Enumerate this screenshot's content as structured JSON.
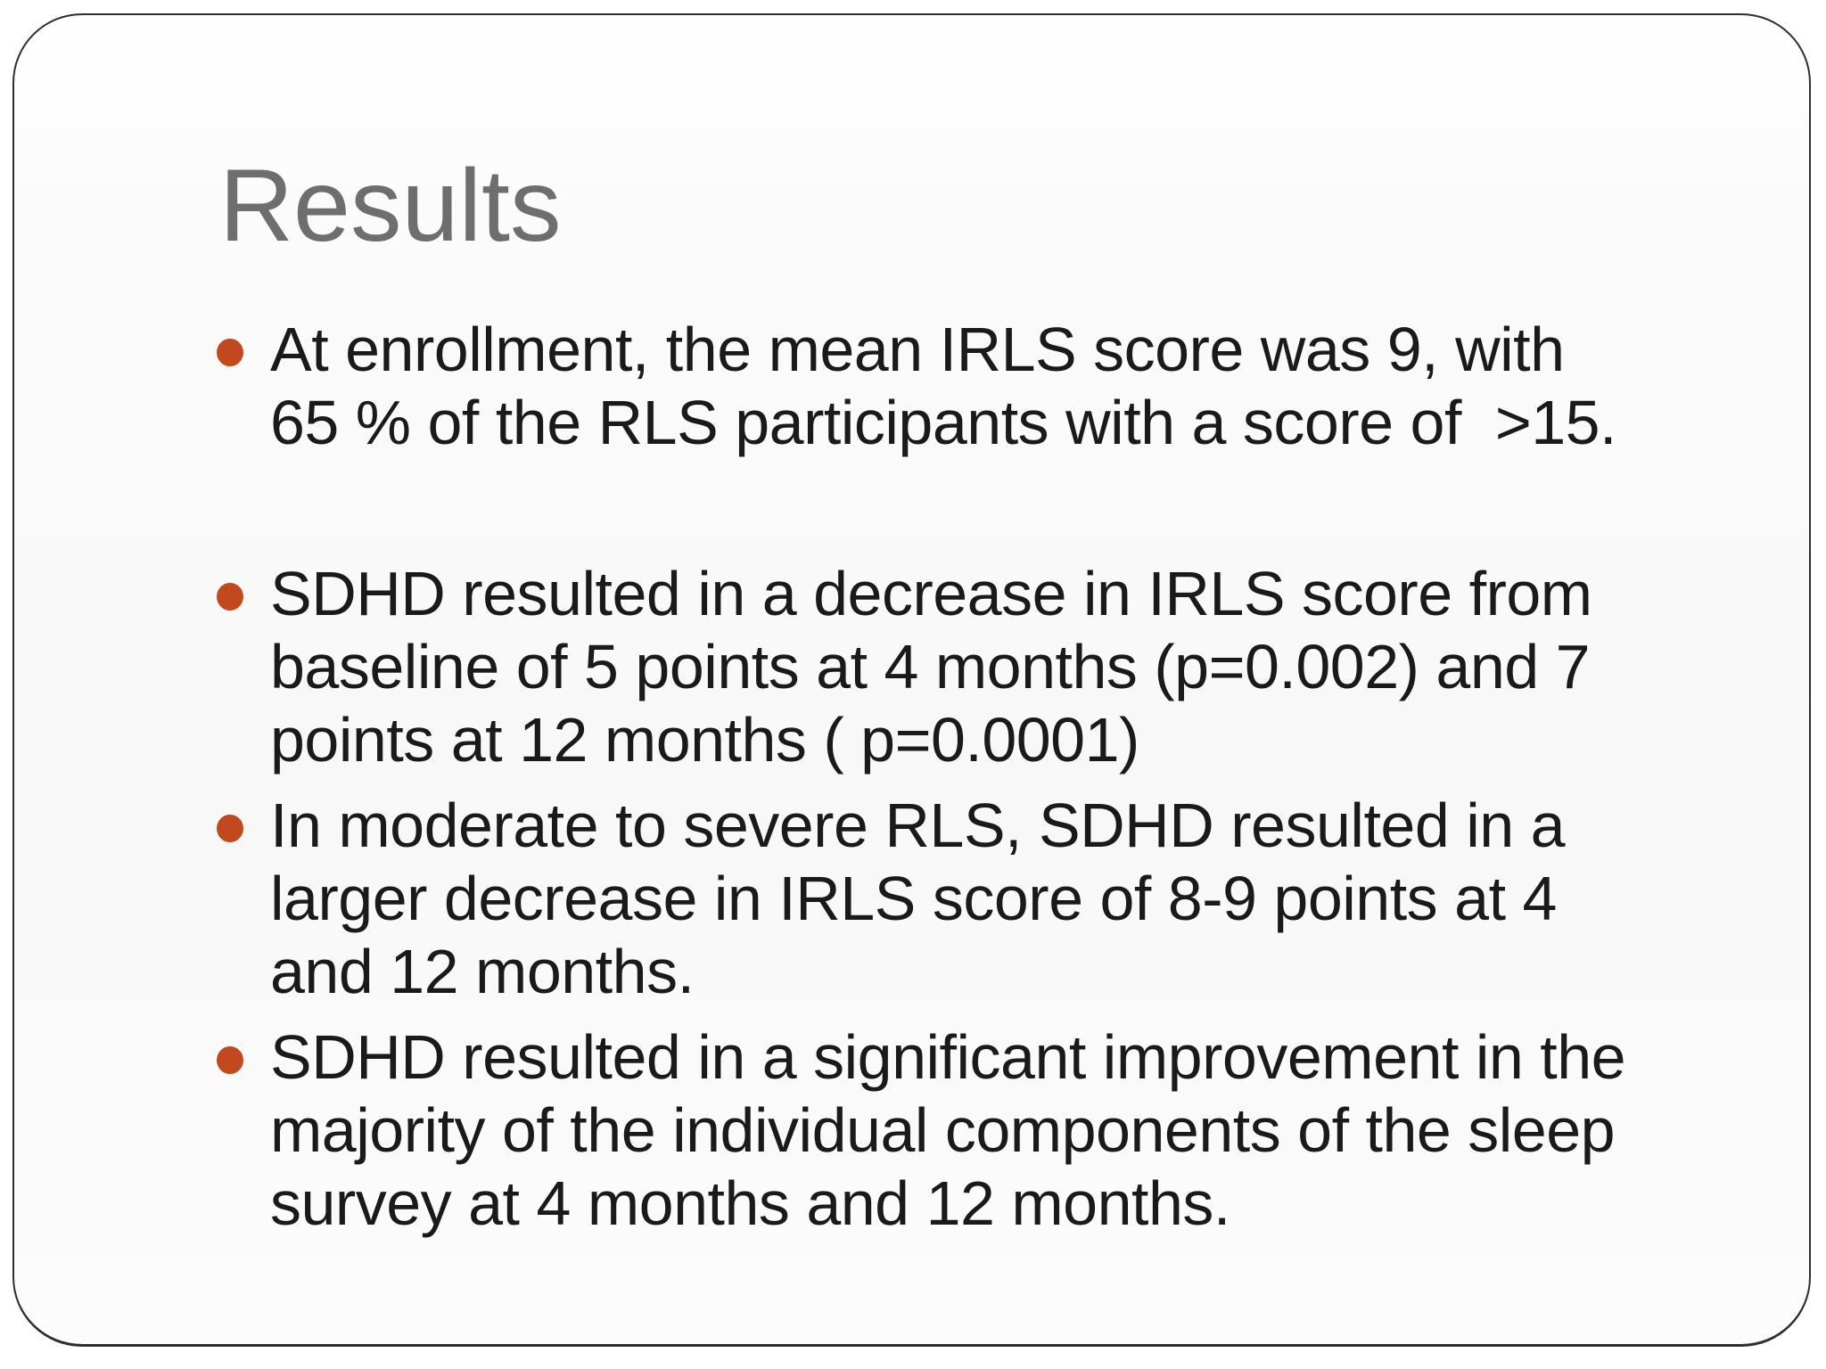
{
  "slide": {
    "title": "Results",
    "bullets": [
      {
        "text": "At enrollment, the mean IRLS score was 9, with\n65 % of the RLS participants with a score of  >15."
      },
      {
        "text": "SDHD resulted in a decrease in IRLS score from\nbaseline of 5 points at 4 months (p=0.002) and 7\npoints at 12 months ( p=0.0001)"
      },
      {
        "text": "In moderate to severe RLS, SDHD resulted in a\nlarger decrease in IRLS score of 8-9 points at 4\nand 12 months."
      },
      {
        "text": "SDHD resulted in a significant improvement in the\nmajority of the individual components of the sleep\nsurvey at 4 months and 12 months."
      }
    ],
    "colors": {
      "bullet": "#c2491d",
      "title": "#6e6e6e",
      "body_text": "#1a1a1a",
      "frame_border": "#2e2e2e",
      "background": "#fbfbfb"
    }
  }
}
